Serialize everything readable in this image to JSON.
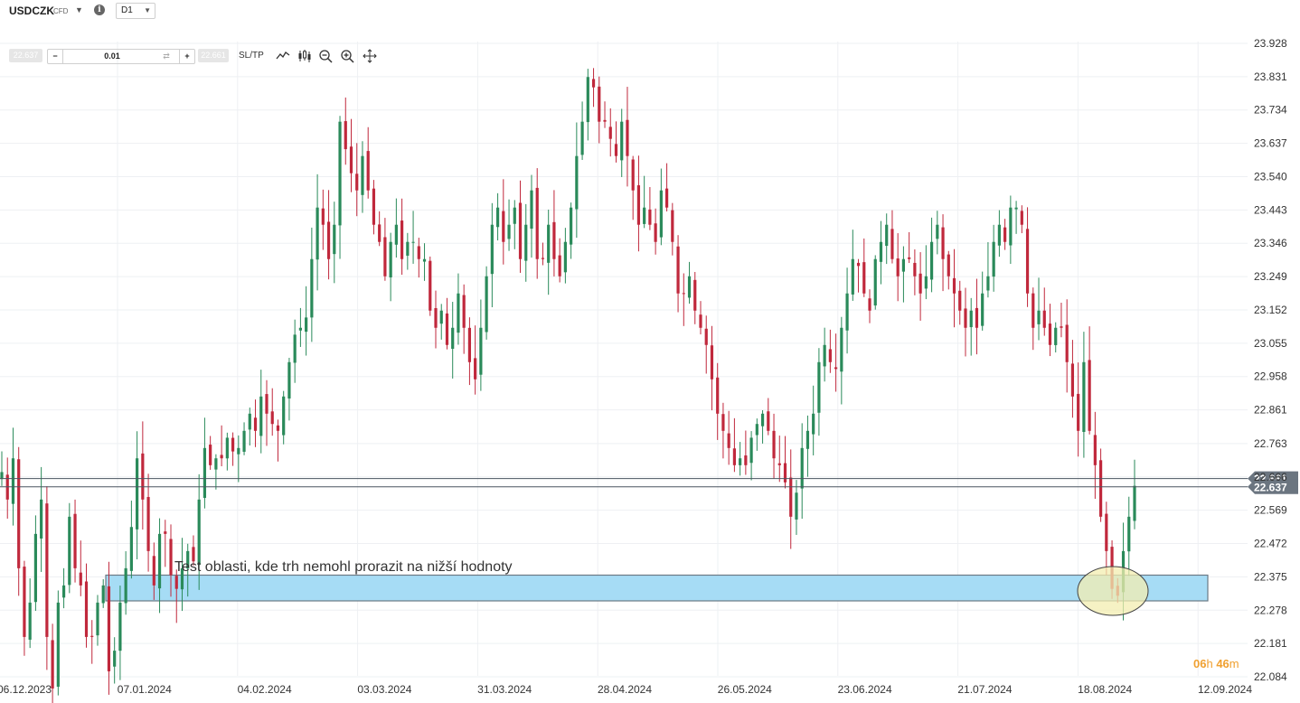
{
  "toolbar": {
    "symbol": "USDCZK",
    "symbol_type": "CFD",
    "timeframe": "D1",
    "bid": "22.637",
    "ask": "22.661",
    "qty_minus": "−",
    "qty_value": "0.01",
    "qty_plus": "+",
    "sltp_label": "SL/TP",
    "icons": [
      "chevron-down-icon",
      "info-icon",
      "line-chart-icon",
      "candlestick-icon",
      "zoom-out-icon",
      "zoom-in-icon",
      "move-icon"
    ]
  },
  "annotation": {
    "text": "Test oblasti, kde trh nemohl prorazit na nižší hodnoty",
    "box_color": "#a6dcf5",
    "highlight_color": "#f3eeb0"
  },
  "timer": {
    "h_value": "06",
    "h_unit": "h",
    "m_value": "46",
    "m_unit": "m"
  },
  "colors": {
    "bull": "#2a8a5a",
    "bear": "#c0283c",
    "price_label": "#6b7580",
    "grid": "#eef0f3"
  },
  "chart_data": {
    "type": "candlestick",
    "title": "",
    "ylim": [
      22.084,
      23.96
    ],
    "y_ticks": [
      "23.928",
      "23.831",
      "23.734",
      "23.637",
      "23.540",
      "23.443",
      "23.346",
      "23.249",
      "23.152",
      "23.055",
      "22.958",
      "22.861",
      "22.763",
      "22.666",
      "22.569",
      "22.472",
      "22.375",
      "22.278",
      "22.181",
      "22.084"
    ],
    "x_labels": [
      "06.12.2023",
      "07.01.2024",
      "04.02.2024",
      "03.03.2024",
      "31.03.2024",
      "28.04.2024",
      "26.05.2024",
      "23.06.2024",
      "21.07.2024",
      "18.08.2024",
      "12.09.2024"
    ],
    "horizontal_lines": [
      {
        "label": "22.661",
        "value": 22.661
      },
      {
        "label": "22.637",
        "value": 22.637
      }
    ],
    "support_zone": {
      "low": 22.305,
      "high": 22.38,
      "from": "15.12.2023",
      "to": "12.09.2024"
    },
    "closes": [
      22.68,
      22.6,
      22.72,
      22.4,
      22.2,
      22.3,
      22.5,
      22.6,
      22.2,
      22.05,
      22.3,
      22.35,
      22.55,
      22.4,
      22.35,
      22.2,
      22.2,
      22.3,
      22.35,
      22.1,
      22.16,
      22.3,
      22.4,
      22.52,
      22.72,
      22.6,
      22.45,
      22.35,
      22.5,
      22.5,
      22.38,
      22.34,
      22.4,
      22.45,
      22.42,
      22.6,
      22.75,
      22.7,
      22.72,
      22.72,
      22.78,
      22.74,
      22.75,
      22.8,
      22.85,
      22.8,
      22.9,
      22.85,
      22.82,
      22.8,
      22.9,
      23.0,
      23.08,
      23.1,
      23.13,
      23.3,
      23.45,
      23.4,
      23.3,
      23.4,
      23.7,
      23.62,
      23.55,
      23.5,
      23.6,
      23.5,
      23.4,
      23.35,
      23.25,
      23.35,
      23.4,
      23.3,
      23.35,
      23.35,
      23.3,
      23.3,
      23.15,
      23.1,
      23.15,
      23.05,
      23.1,
      23.2,
      23.1,
      23.0,
      22.95,
      23.1,
      23.25,
      23.4,
      23.45,
      23.35,
      23.4,
      23.45,
      23.3,
      23.4,
      23.5,
      23.3,
      23.3,
      23.4,
      23.3,
      23.25,
      23.35,
      23.45,
      23.6,
      23.7,
      23.83,
      23.8,
      23.7,
      23.7,
      23.65,
      23.6,
      23.7,
      23.6,
      23.5,
      23.4,
      23.45,
      23.4,
      23.35,
      23.5,
      23.45,
      23.35,
      23.2,
      23.2,
      23.25,
      23.15,
      23.1,
      23.05,
      22.95,
      22.85,
      22.8,
      22.75,
      22.7,
      22.72,
      22.7,
      22.78,
      22.82,
      22.85,
      22.8,
      22.72,
      22.7,
      22.65,
      22.55,
      22.62,
      22.75,
      22.8,
      22.85,
      23.0,
      23.05,
      23.0,
      22.98,
      23.1,
      23.2,
      23.3,
      23.28,
      23.2,
      23.15,
      23.3,
      23.35,
      23.4,
      23.3,
      23.25,
      23.3,
      23.3,
      23.25,
      23.2,
      23.25,
      23.35,
      23.4,
      23.3,
      23.25,
      23.2,
      23.15,
      23.1,
      23.15,
      23.1,
      23.2,
      23.25,
      23.35,
      23.4,
      23.35,
      23.45,
      23.45,
      23.4,
      23.2,
      23.1,
      23.15,
      23.1,
      23.05,
      23.1,
      23.1,
      23.0,
      22.9,
      22.8,
      23.0,
      22.8,
      22.7,
      22.55,
      22.45,
      22.34,
      22.32,
      22.45,
      22.55,
      22.64
    ]
  }
}
